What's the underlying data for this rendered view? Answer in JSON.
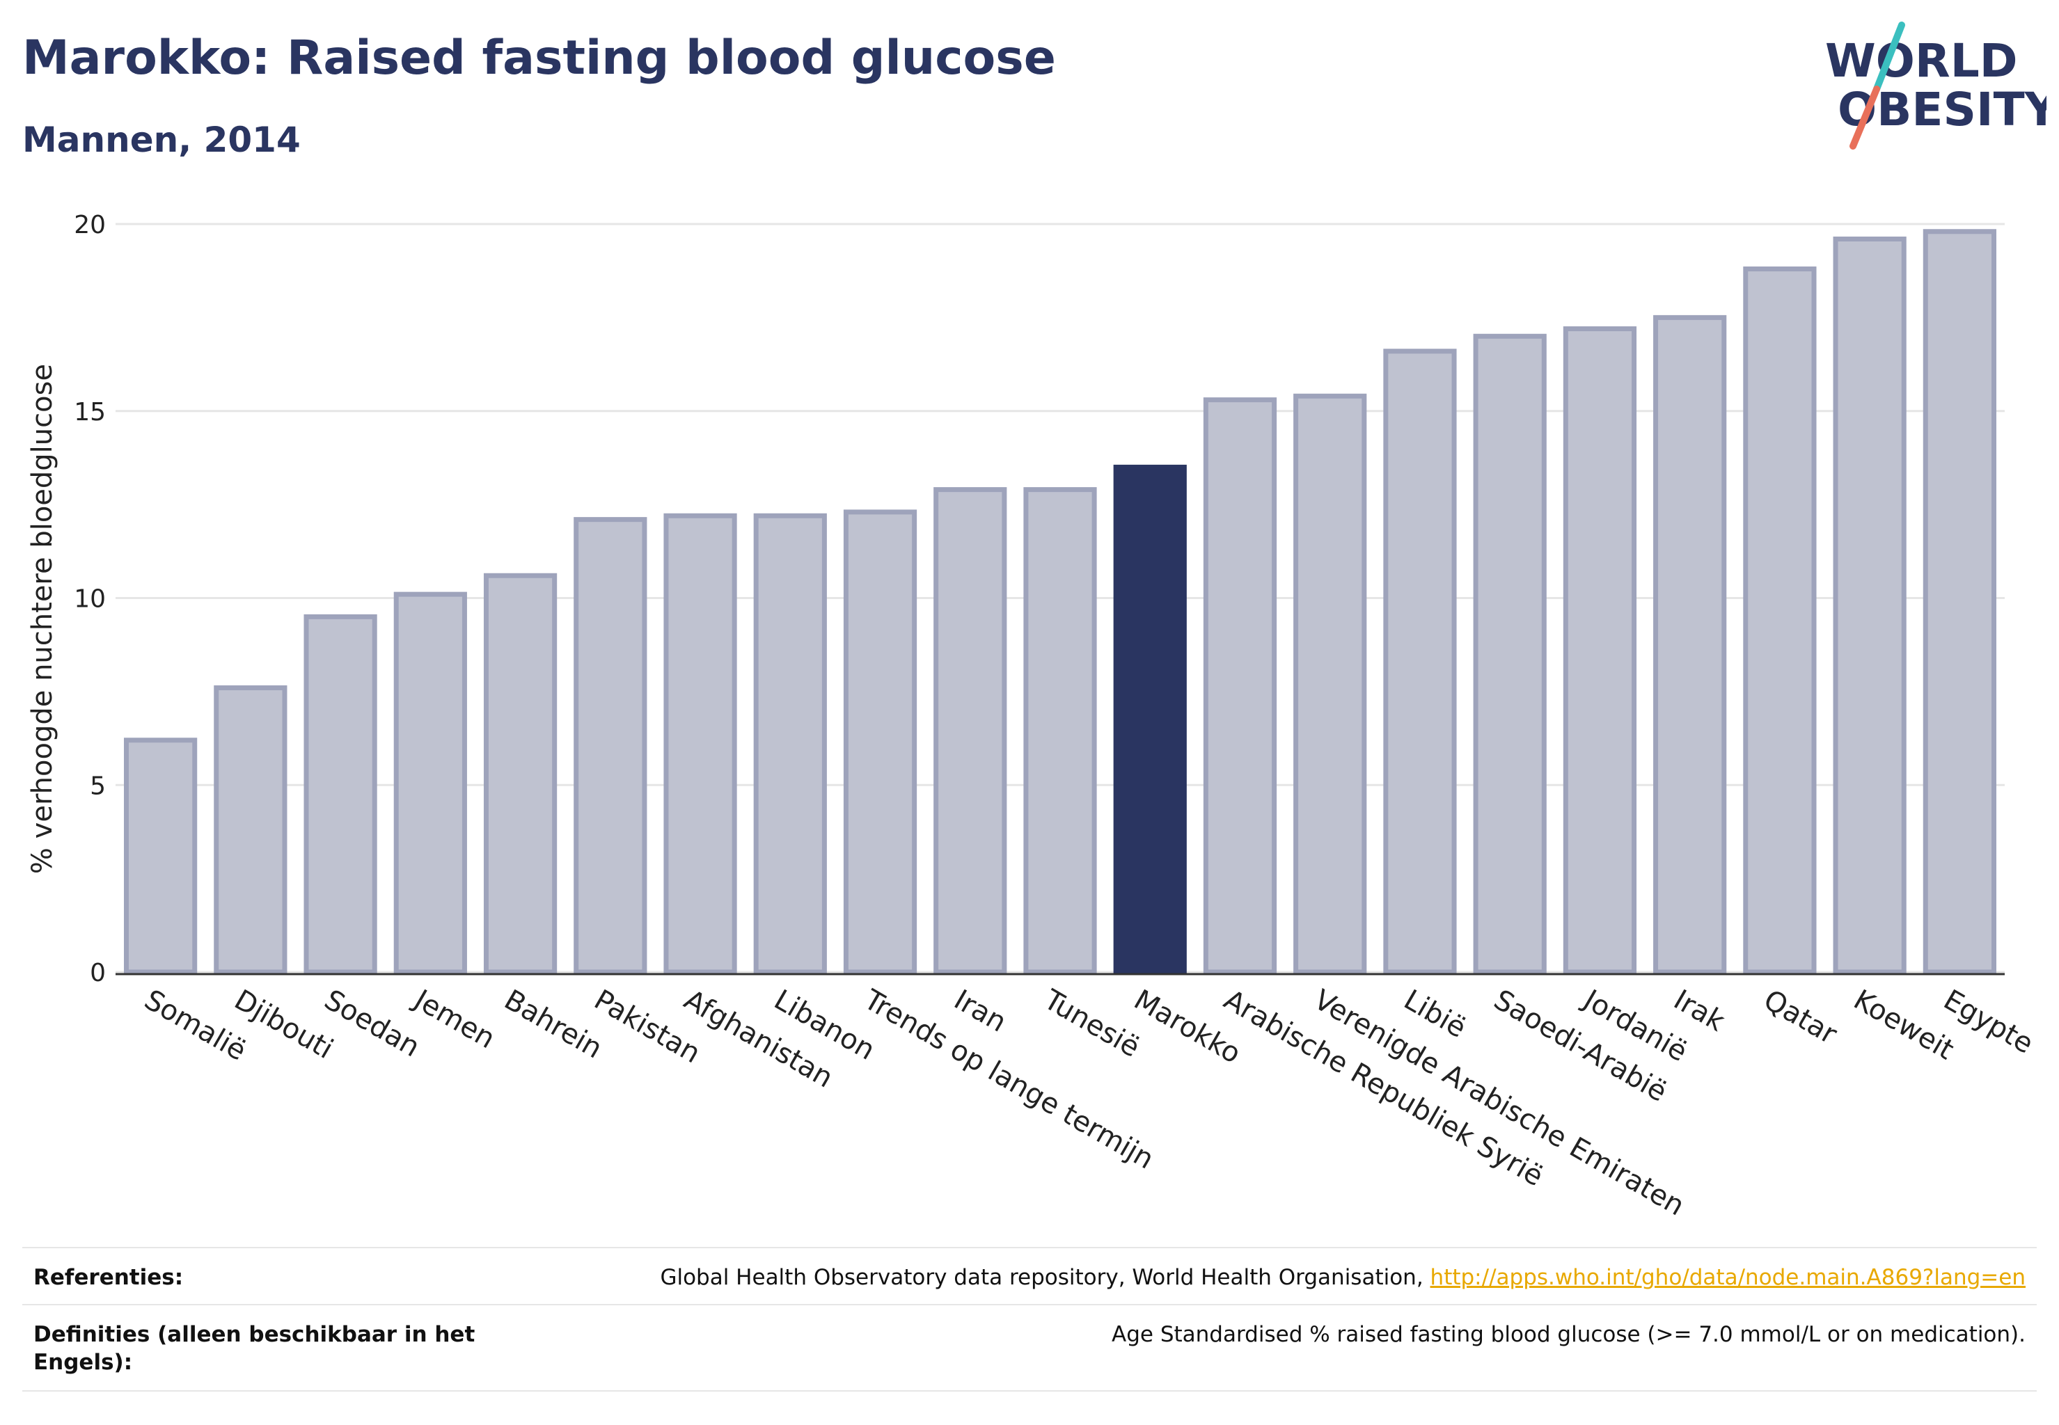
{
  "header": {
    "title": "Marokko: Raised fasting blood glucose",
    "subtitle": "Mannen, 2014"
  },
  "logo": {
    "line1": "WORLD",
    "line2": "OBESITY",
    "text_color": "#2a3561",
    "slash_top_color": "#3bbfbf",
    "slash_bottom_color": "#e8705a"
  },
  "chart_data": {
    "type": "bar",
    "ylabel": "% verhoogde nuchtere bloedglucose",
    "xlabel": "",
    "ylim": [
      0,
      20
    ],
    "yticks": [
      0,
      5,
      10,
      15,
      20
    ],
    "grid": true,
    "highlight_category": "Marokko",
    "colors": {
      "bar": "#bfc2d0",
      "bar_border": "#9ea3bb",
      "highlight": "#2a3561",
      "grid": "#e6e6e6",
      "axis": "#333333"
    },
    "categories": [
      "Somalië",
      "Djibouti",
      "Soedan",
      "Jemen",
      "Bahrein",
      "Pakistan",
      "Afghanistan",
      "Libanon",
      "Trends op lange termijn",
      "Iran",
      "Tunesië",
      "Marokko",
      "Arabische Republiek Syrië",
      "Verenigde Arabische Emiraten",
      "Libië",
      "Saoedi-Arabië",
      "Jordanië",
      "Irak",
      "Qatar",
      "Koeweit",
      "Egypte"
    ],
    "values": [
      6.2,
      7.6,
      9.5,
      10.1,
      10.6,
      12.1,
      12.2,
      12.2,
      12.3,
      12.9,
      12.9,
      13.5,
      15.3,
      15.4,
      16.6,
      17.0,
      17.2,
      17.5,
      18.8,
      19.6,
      19.8
    ]
  },
  "footer": {
    "references_label": "Referenties:",
    "references_text": "Global Health Observatory data repository, World Health Organisation, ",
    "references_link": "http://apps.who.int/gho/data/node.main.A869?lang=en",
    "definitions_label": "Definities (alleen beschikbaar in het Engels):",
    "definitions_text": "Age Standardised % raised fasting blood glucose (>= 7.0 mmol/L or on medication)."
  }
}
